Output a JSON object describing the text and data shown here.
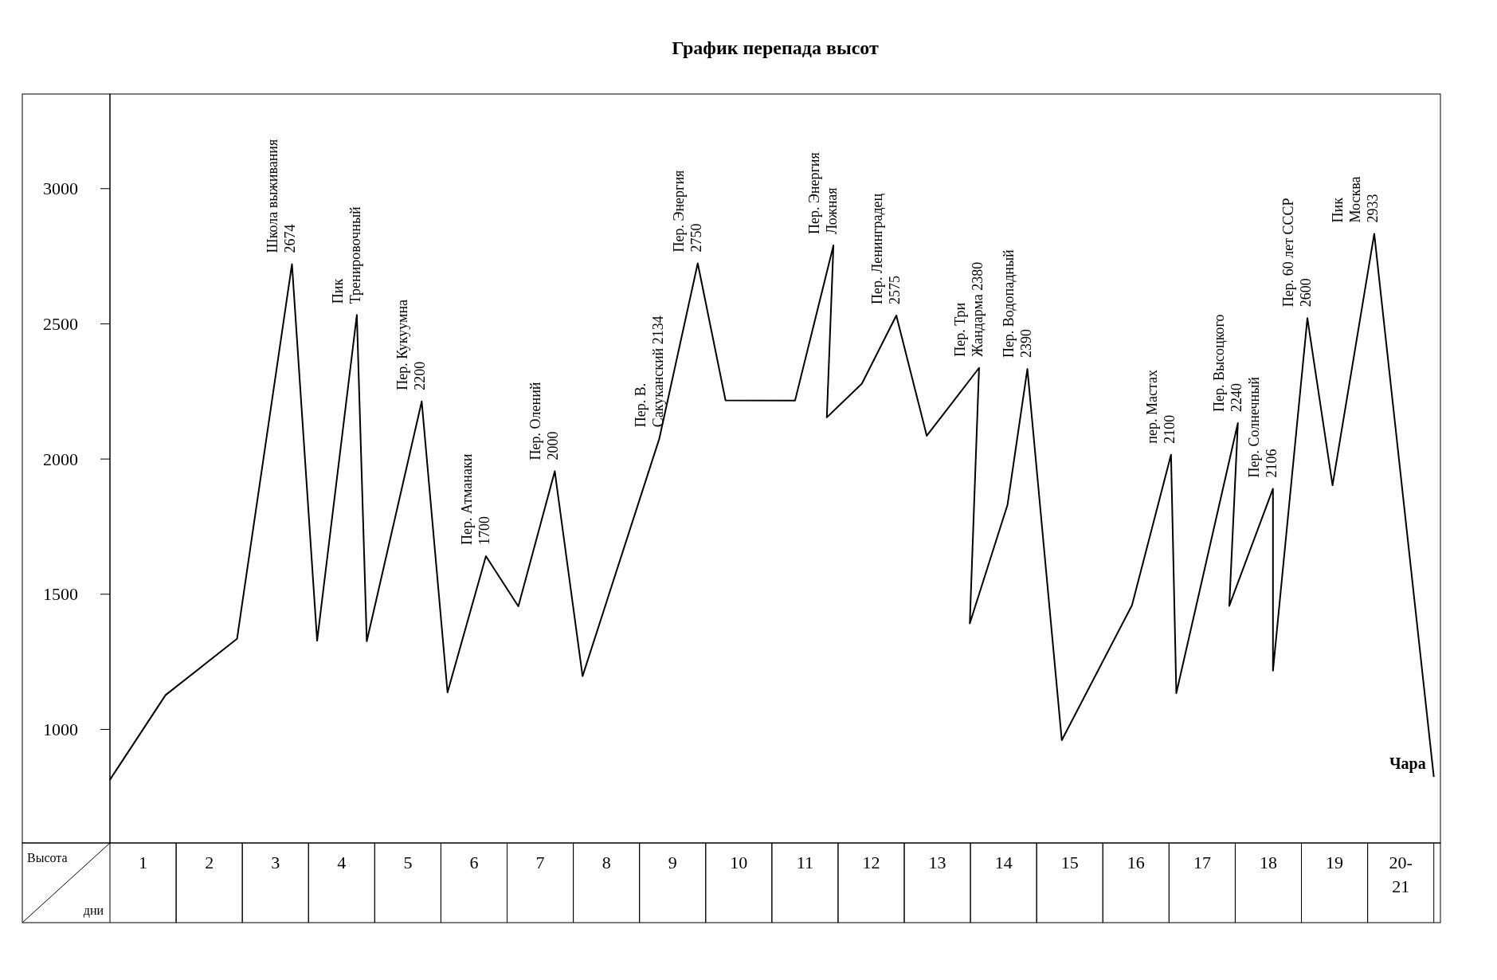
{
  "chart_data": {
    "type": "line",
    "title": "График перепада высот",
    "xlabel": "дни",
    "ylabel": "Высота",
    "xlim": [
      0,
      20.1
    ],
    "ylim": [
      580,
      3350
    ],
    "xticks": [
      {
        "value": 0.5,
        "label": "1"
      },
      {
        "value": 1.5,
        "label": "2"
      },
      {
        "value": 2.5,
        "label": "3"
      },
      {
        "value": 3.5,
        "label": "4"
      },
      {
        "value": 4.5,
        "label": "5"
      },
      {
        "value": 5.5,
        "label": "6"
      },
      {
        "value": 6.5,
        "label": "7"
      },
      {
        "value": 7.5,
        "label": "8"
      },
      {
        "value": 8.5,
        "label": "9"
      },
      {
        "value": 9.5,
        "label": "10"
      },
      {
        "value": 10.5,
        "label": "11"
      },
      {
        "value": 11.5,
        "label": "12"
      },
      {
        "value": 12.5,
        "label": "13"
      },
      {
        "value": 13.5,
        "label": "14"
      },
      {
        "value": 14.5,
        "label": "15"
      },
      {
        "value": 15.5,
        "label": "16"
      },
      {
        "value": 16.5,
        "label": "17"
      },
      {
        "value": 17.5,
        "label": "18"
      },
      {
        "value": 18.5,
        "label": "19"
      },
      {
        "value": 19.5,
        "label": "20-21"
      }
    ],
    "yticks": [
      1000,
      1500,
      2000,
      2500,
      3000
    ],
    "grid": false,
    "marker": "none",
    "line_style": "solid",
    "x": [
      0,
      0.84,
      1.92,
      2.75,
      3.13,
      3.73,
      3.88,
      4.71,
      5.1,
      5.68,
      6.17,
      6.72,
      7.14,
      8.3,
      8.88,
      9.3,
      10.35,
      10.93,
      10.83,
      11.36,
      11.88,
      12.34,
      13.13,
      12.99,
      13.56,
      13.86,
      14.38,
      15.44,
      16.03,
      16.11,
      17.04,
      16.91,
      17.57,
      17.57,
      18.09,
      18.47,
      19.1,
      20
    ],
    "series": [
      {
        "color": "#000000",
        "values": [
          814,
          1127,
          1335,
          2721,
          1328,
          2533,
          1326,
          2213,
          1137,
          1641,
          1455,
          1955,
          1197,
          2076,
          2724,
          2217,
          2216,
          2790,
          2154,
          2279,
          2531,
          2086,
          2337,
          1392,
          1831,
          2333,
          960,
          1459,
          2016,
          1134,
          2133,
          1457,
          1890,
          1217,
          2521,
          1903,
          2833,
          824
        ]
      }
    ],
    "annotations": [
      {
        "text": "Школа выживания\n2674",
        "x": 2.75,
        "y": 2721
      },
      {
        "text": "Пик\nТренировочный",
        "x": 3.73,
        "y": 2533
      },
      {
        "text": "Пер. Кукуумна\n2200",
        "x": 4.71,
        "y": 2213
      },
      {
        "text": "Пер. Атманаки\n1700",
        "x": 5.68,
        "y": 1641
      },
      {
        "text": "Пер. Олений\n2000",
        "x": 6.72,
        "y": 1955
      },
      {
        "text": "Пер. В.\nСакуканский 2134",
        "x": 8.3,
        "y": 2076
      },
      {
        "text": "Пер. Энергия\n2750",
        "x": 8.88,
        "y": 2724
      },
      {
        "text": "Пер. Энергия\nЛожная",
        "x": 10.93,
        "y": 2790
      },
      {
        "text": "Пер. Ленинградец\n2575",
        "x": 11.88,
        "y": 2531
      },
      {
        "text": "Пер. Три\nЖандарма 2380",
        "x": 13.13,
        "y": 2337
      },
      {
        "text": "Пер. Водопадный\n2390",
        "x": 13.86,
        "y": 2333
      },
      {
        "text": "пер. Мастах\n2100",
        "x": 16.03,
        "y": 2016
      },
      {
        "text": "Пер. Высоцкого\n2240",
        "x": 17.04,
        "y": 2133
      },
      {
        "text": "Пер. Солнечный\n2106",
        "x": 17.57,
        "y": 1890
      },
      {
        "text": "Пер. 60 лет СССР\n2600",
        "x": 18.09,
        "y": 2521
      },
      {
        "text": "Пик\nМосква\n2933",
        "x": 19.1,
        "y": 2833
      },
      {
        "text": "Чара",
        "x": 20,
        "y": 824
      }
    ]
  }
}
